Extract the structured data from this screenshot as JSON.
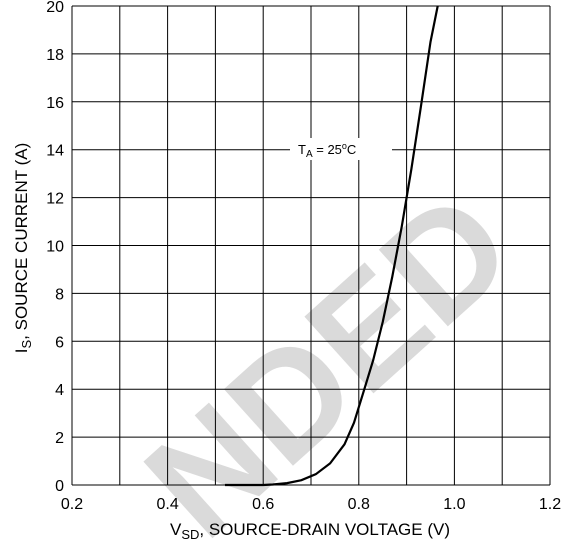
{
  "chart_data": {
    "type": "line",
    "title": "",
    "xlabel_main": "V",
    "xlabel_sub": "SD",
    "xlabel_rest": ", SOURCE-DRAIN VOLTAGE (V)",
    "ylabel_main": "I",
    "ylabel_sub": "S",
    "ylabel_rest": ", SOURCE CURRENT (A)",
    "xlim": [
      0.2,
      1.2
    ],
    "ylim": [
      0,
      20
    ],
    "x_ticks": [
      0.2,
      0.3,
      0.4,
      0.5,
      0.6,
      0.7,
      0.8,
      0.9,
      1.0,
      1.1,
      1.2
    ],
    "x_tick_labels": [
      "0.2",
      "",
      "0.4",
      "",
      "0.6",
      "",
      "0.8",
      "",
      "1.0",
      "",
      "1.2"
    ],
    "y_ticks": [
      0,
      2,
      4,
      6,
      8,
      10,
      12,
      14,
      16,
      18,
      20
    ],
    "y_tick_labels": [
      "0",
      "2",
      "4",
      "6",
      "8",
      "10",
      "12",
      "14",
      "16",
      "18",
      "20"
    ],
    "grid": true,
    "annotation": {
      "main": "T",
      "sub": "A",
      "rest": " = 25",
      "deg": "o",
      "unit": "C"
    },
    "series": [
      {
        "x": [
          0.52,
          0.56,
          0.6,
          0.62,
          0.65,
          0.68,
          0.71,
          0.74,
          0.77,
          0.79,
          0.81,
          0.83,
          0.85,
          0.87,
          0.89,
          0.91,
          0.93,
          0.95,
          0.97
        ],
        "y": [
          0,
          0,
          0,
          0.02,
          0.08,
          0.2,
          0.45,
          0.9,
          1.7,
          2.6,
          3.9,
          5.2,
          6.8,
          8.7,
          10.8,
          13.2,
          15.8,
          18.5,
          20.5
        ]
      }
    ],
    "watermark": "NDED"
  }
}
